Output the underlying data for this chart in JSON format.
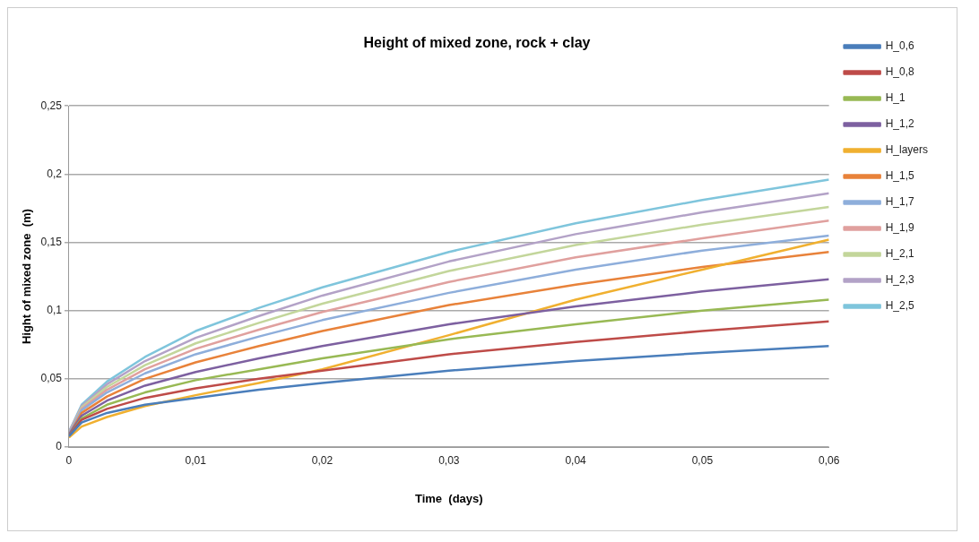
{
  "chart_data": {
    "type": "line",
    "title": "Height of mixed zone, rock + clay",
    "xlabel": "Time  (days)",
    "ylabel": "Hight of mixed zone  (m)",
    "x": [
      0,
      0.001,
      0.003,
      0.006,
      0.01,
      0.015,
      0.02,
      0.03,
      0.04,
      0.05,
      0.06
    ],
    "xlim": [
      0,
      0.06
    ],
    "xticks": [
      0,
      {
        "value": 0.01,
        "label": "0,01"
      },
      {
        "value": 0.02,
        "label": "0,02"
      },
      {
        "value": 0.03,
        "label": "0,03"
      },
      {
        "value": 0.04,
        "label": "0,04"
      },
      {
        "value": 0.05,
        "label": "0,05"
      },
      {
        "value": 0.06,
        "label": "0,06"
      }
    ],
    "ylim": [
      0,
      0.25
    ],
    "yticks": [
      0,
      {
        "value": 0.05,
        "label": "0,05"
      },
      {
        "value": 0.1,
        "label": "0,1"
      },
      {
        "value": 0.15,
        "label": "0,15"
      },
      {
        "value": 0.2,
        "label": "0,2"
      },
      {
        "value": 0.25,
        "label": "0,25"
      }
    ],
    "grid": "y",
    "legend": "right",
    "marker": "none",
    "line_style": "solid",
    "series": [
      {
        "name": "H_0,6",
        "color": "#4a7ebb",
        "values": [
          0.008,
          0.018,
          0.025,
          0.031,
          0.036,
          0.042,
          0.047,
          0.056,
          0.063,
          0.069,
          0.074
        ]
      },
      {
        "name": "H_0,8",
        "color": "#be4b48",
        "values": [
          0.008,
          0.02,
          0.028,
          0.036,
          0.043,
          0.05,
          0.056,
          0.068,
          0.077,
          0.085,
          0.092
        ]
      },
      {
        "name": "H_1",
        "color": "#98b954",
        "values": [
          0.008,
          0.021,
          0.031,
          0.04,
          0.049,
          0.057,
          0.065,
          0.079,
          0.09,
          0.1,
          0.108
        ]
      },
      {
        "name": "H_1,2",
        "color": "#7d60a0",
        "values": [
          0.009,
          0.023,
          0.034,
          0.045,
          0.055,
          0.065,
          0.074,
          0.09,
          0.103,
          0.114,
          0.123
        ]
      },
      {
        "name": "H_layers",
        "color": "#f0b030",
        "values": [
          0.007,
          0.015,
          0.022,
          0.03,
          0.038,
          0.047,
          0.057,
          0.082,
          0.108,
          0.13,
          0.152
        ]
      },
      {
        "name": "H_1,5",
        "color": "#e8823a",
        "values": [
          0.009,
          0.025,
          0.037,
          0.05,
          0.062,
          0.074,
          0.085,
          0.104,
          0.119,
          0.132,
          0.143
        ]
      },
      {
        "name": "H_1,7",
        "color": "#8eaedb",
        "values": [
          0.01,
          0.027,
          0.04,
          0.054,
          0.068,
          0.081,
          0.093,
          0.113,
          0.13,
          0.144,
          0.155
        ]
      },
      {
        "name": "H_1,9",
        "color": "#e0a09e",
        "values": [
          0.01,
          0.028,
          0.042,
          0.057,
          0.072,
          0.086,
          0.099,
          0.121,
          0.139,
          0.153,
          0.166
        ]
      },
      {
        "name": "H_2,1",
        "color": "#c3d69b",
        "values": [
          0.01,
          0.029,
          0.044,
          0.06,
          0.076,
          0.091,
          0.105,
          0.129,
          0.148,
          0.163,
          0.176
        ]
      },
      {
        "name": "H_2,3",
        "color": "#b3a2c7",
        "values": [
          0.011,
          0.03,
          0.046,
          0.063,
          0.08,
          0.096,
          0.111,
          0.136,
          0.156,
          0.172,
          0.186
        ]
      },
      {
        "name": "H_2,5",
        "color": "#7fc5dc",
        "values": [
          0.011,
          0.031,
          0.048,
          0.066,
          0.085,
          0.102,
          0.117,
          0.143,
          0.164,
          0.181,
          0.196
        ]
      }
    ]
  }
}
